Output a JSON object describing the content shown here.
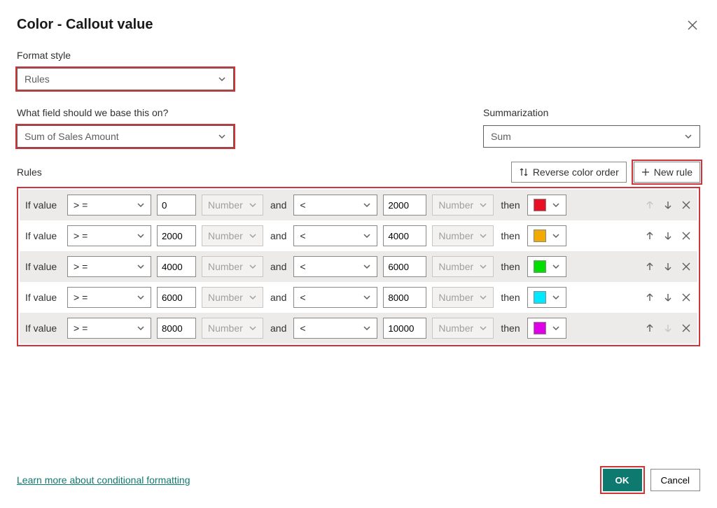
{
  "dialog": {
    "title": "Color - Callout value",
    "format_style_label": "Format style",
    "format_style_value": "Rules",
    "field_label": "What field should we base this on?",
    "field_value": "Sum of Sales Amount",
    "summarization_label": "Summarization",
    "summarization_value": "Sum",
    "rules_label": "Rules",
    "reverse_button": "Reverse color order",
    "new_rule_button": "New rule",
    "learn_more": "Learn more about conditional formatting",
    "ok_button": "OK",
    "cancel_button": "Cancel",
    "if_value_label": "If value",
    "and_label": "and",
    "then_label": "then",
    "type_label": "Number",
    "highlight_color": "#d13438",
    "primary_color": "#0e7a6f"
  },
  "rules": [
    {
      "op1": "> =",
      "val1": "0",
      "op2": "<",
      "val2": "2000",
      "color": "#e81123"
    },
    {
      "op1": "> =",
      "val1": "2000",
      "op2": "<",
      "val2": "4000",
      "color": "#f2a900"
    },
    {
      "op1": "> =",
      "val1": "4000",
      "op2": "<",
      "val2": "6000",
      "color": "#00e000"
    },
    {
      "op1": "> =",
      "val1": "6000",
      "op2": "<",
      "val2": "8000",
      "color": "#00e8ff"
    },
    {
      "op1": "> =",
      "val1": "8000",
      "op2": "<",
      "val2": "10000",
      "color": "#e000e8"
    }
  ]
}
